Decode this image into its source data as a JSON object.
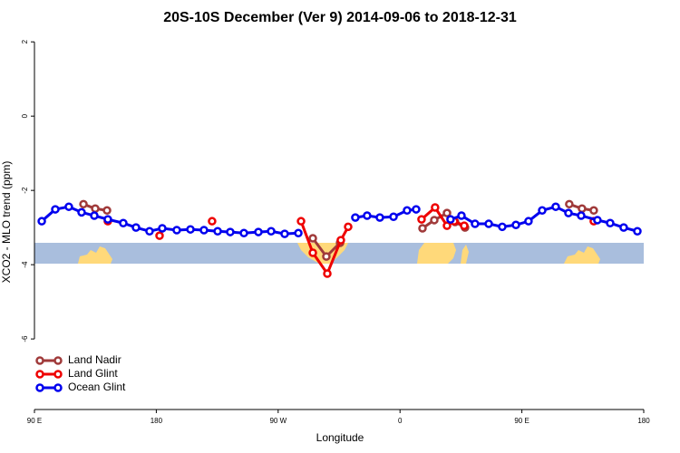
{
  "chart_data": {
    "type": "line",
    "title": "20S-10S December (Ver 9)   2014-09-06 to 2018-12-31",
    "xlabel": "Longitude",
    "ylabel": "XCO2 - MLO trend (ppm)",
    "xlim": [
      90,
      540
    ],
    "ylim": [
      -7.9,
      2.2
    ],
    "xticks": [
      {
        "value": 90,
        "label": "90 E"
      },
      180,
      {
        "value": 270,
        "label": "90 W"
      },
      {
        "value": 360,
        "label": "0"
      },
      {
        "value": 450,
        "label": "90 E"
      },
      {
        "value": 540,
        "label": "180"
      }
    ],
    "yticks": [
      -6,
      -4,
      -2,
      0,
      2
    ],
    "legend": "bottomleft",
    "series": [
      {
        "name": "Land Nadir",
        "color": "#a03a3a",
        "x": [
          126.2,
          134.9,
          143.6,
          null,
          295.6,
          305.6,
          315.7,
          null,
          376.6,
          385.3,
          394.7,
          400.7,
          408,
          null,
          485,
          494.4,
          503.1
        ],
        "values": [
          -2.37,
          -2.49,
          -2.54,
          null,
          -3.29,
          -3.78,
          -3.41,
          null,
          -3.02,
          -2.8,
          -2.61,
          -2.85,
          -3.0,
          null,
          -2.37,
          -2.49,
          -2.54
        ]
      },
      {
        "name": "Land Glint",
        "color": "#ee0000",
        "x": [
          144.2,
          null,
          182.4,
          null,
          221.2,
          null,
          286.9,
          295.6,
          306.3,
          316.3,
          321.7,
          null,
          375.9,
          385.9,
          394.7,
          400,
          407.4,
          null,
          503.1
        ],
        "values": [
          -2.83,
          null,
          -3.22,
          null,
          -2.83,
          null,
          -2.83,
          -3.68,
          -4.24,
          -3.34,
          -2.98,
          null,
          -2.78,
          -2.46,
          -2.95,
          -2.83,
          -2.95,
          null,
          -2.83
        ]
      },
      {
        "name": "Ocean Glint",
        "color": "#0000ee",
        "x": [
          95.4,
          105.4,
          115.4,
          124.8,
          134.2,
          144.2,
          155.6,
          165,
          175,
          184.4,
          195.1,
          205.2,
          215.2,
          225.3,
          234.6,
          244.7,
          255.4,
          264.8,
          274.8,
          284.9,
          null,
          327,
          335.7,
          345.1,
          355.2,
          365.2,
          371.9,
          null,
          397.3,
          405.4,
          415.4,
          425.5,
          435.5,
          445.6,
          454.9,
          465,
          475,
          484.4,
          493.8,
          505.8,
          515.2,
          525.2,
          535.3
        ],
        "values": [
          -2.83,
          -2.51,
          -2.44,
          -2.59,
          -2.68,
          -2.78,
          -2.88,
          -3.0,
          -3.1,
          -3.02,
          -3.07,
          -3.05,
          -3.07,
          -3.1,
          -3.12,
          -3.15,
          -3.12,
          -3.1,
          -3.17,
          -3.15,
          null,
          -2.73,
          -2.68,
          -2.73,
          -2.71,
          -2.54,
          -2.51,
          null,
          -2.78,
          -2.68,
          -2.9,
          -2.9,
          -2.98,
          -2.93,
          -2.83,
          -2.54,
          -2.44,
          -2.61,
          -2.68,
          -2.8,
          -2.88,
          -3.0,
          -3.1
        ]
      }
    ]
  }
}
